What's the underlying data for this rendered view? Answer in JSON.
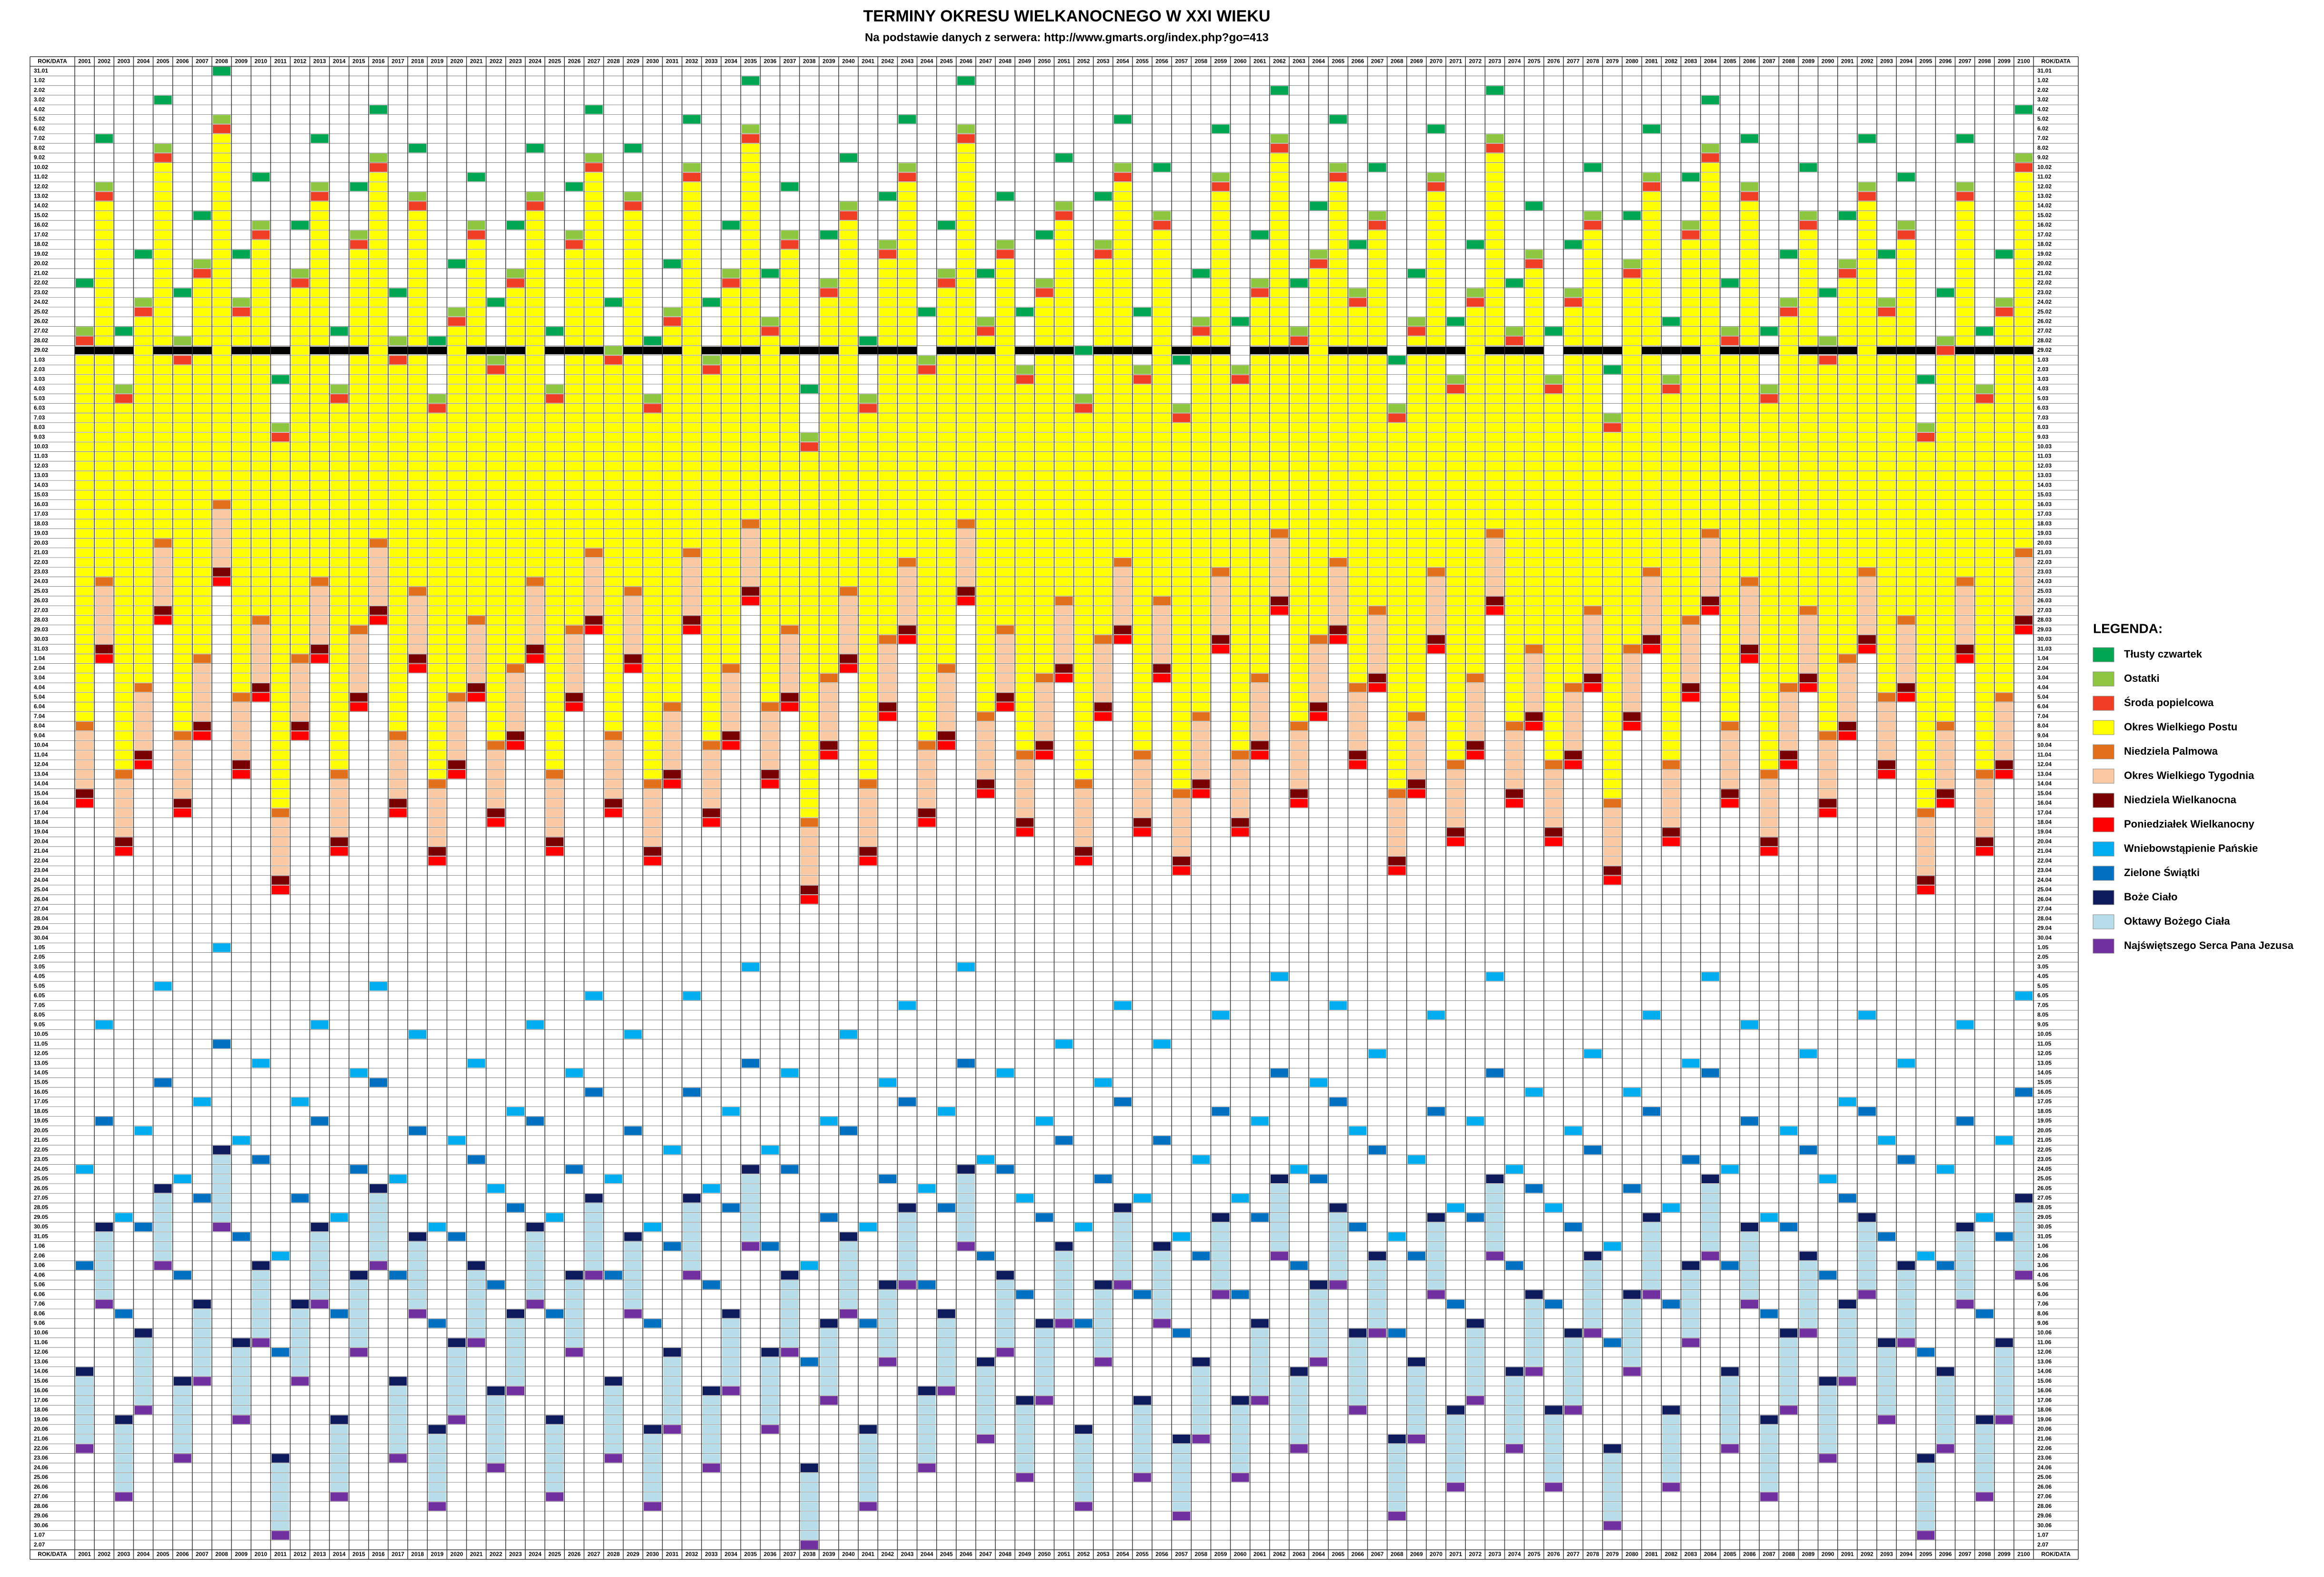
{
  "chart_data": {
    "type": "calendar",
    "title": "TERMINY OKRESU WIELKANOCNEGO W XXI WIEKU",
    "subtitle": "Na podstawie danych z serwera: http://www.gmarts.org/index.php?go=413",
    "corner_label": "ROK/DATA",
    "years": [
      2001,
      2002,
      2003,
      2004,
      2005,
      2006,
      2007,
      2008,
      2009,
      2010,
      2011,
      2012,
      2013,
      2014,
      2015,
      2016,
      2017,
      2018,
      2019,
      2020,
      2021,
      2022,
      2023,
      2024,
      2025,
      2026,
      2027,
      2028,
      2029,
      2030,
      2031,
      2032,
      2033,
      2034,
      2035,
      2036,
      2037,
      2038,
      2039,
      2040,
      2041,
      2042,
      2043,
      2044,
      2045,
      2046,
      2047,
      2048,
      2049,
      2050,
      2051,
      2052,
      2053,
      2054,
      2055,
      2056,
      2057,
      2058,
      2059,
      2060,
      2061,
      2062,
      2063,
      2064,
      2065,
      2066,
      2067,
      2068,
      2069,
      2070,
      2071,
      2072,
      2073,
      2074,
      2075,
      2076,
      2077,
      2078,
      2079,
      2080,
      2081,
      2082,
      2083,
      2084,
      2085,
      2086,
      2087,
      2088,
      2089,
      2090,
      2091,
      2092,
      2093,
      2094,
      2095,
      2096,
      2097,
      2098,
      2099,
      2100
    ],
    "easter": [
      "15.04",
      "31.03",
      "20.04",
      "11.04",
      "27.03",
      "16.04",
      "8.04",
      "23.03",
      "12.04",
      "4.04",
      "24.04",
      "8.04",
      "31.03",
      "20.04",
      "5.04",
      "27.03",
      "16.04",
      "1.04",
      "21.04",
      "12.04",
      "4.04",
      "17.04",
      "9.04",
      "31.03",
      "20.04",
      "5.04",
      "28.03",
      "16.04",
      "1.04",
      "21.04",
      "13.04",
      "28.03",
      "17.04",
      "9.04",
      "25.03",
      "13.04",
      "5.04",
      "25.04",
      "10.04",
      "1.04",
      "21.04",
      "6.04",
      "29.03",
      "17.04",
      "9.04",
      "25.03",
      "14.04",
      "5.04",
      "18.04",
      "10.04",
      "2.04",
      "21.04",
      "6.04",
      "29.03",
      "18.04",
      "2.04",
      "22.04",
      "14.04",
      "30.03",
      "18.04",
      "10.04",
      "26.03",
      "15.04",
      "6.04",
      "29.03",
      "11.04",
      "3.04",
      "22.04",
      "14.04",
      "30.03",
      "19.04",
      "10.04",
      "26.03",
      "15.04",
      "7.04",
      "19.04",
      "11.04",
      "3.04",
      "23.04",
      "7.04",
      "30.03",
      "19.04",
      "4.04",
      "26.03",
      "15.04",
      "31.03",
      "20.04",
      "11.04",
      "3.04",
      "16.04",
      "8.04",
      "30.03",
      "12.04",
      "4.04",
      "24.04",
      "15.04",
      "31.03",
      "20.04",
      "12.04",
      "28.03"
    ],
    "rows": [
      "31.01",
      "1.02",
      "2.02",
      "3.02",
      "4.02",
      "5.02",
      "6.02",
      "7.02",
      "8.02",
      "9.02",
      "10.02",
      "11.02",
      "12.02",
      "13.02",
      "14.02",
      "15.02",
      "16.02",
      "17.02",
      "18.02",
      "19.02",
      "20.02",
      "21.02",
      "22.02",
      "23.02",
      "24.02",
      "25.02",
      "26.02",
      "27.02",
      "28.02",
      "29.02",
      "1.03",
      "2.03",
      "3.03",
      "4.03",
      "5.03",
      "6.03",
      "7.03",
      "8.03",
      "9.03",
      "10.03",
      "11.03",
      "12.03",
      "13.03",
      "14.03",
      "15.03",
      "16.03",
      "17.03",
      "18.03",
      "19.03",
      "20.03",
      "21.03",
      "22.03",
      "23.03",
      "24.03",
      "25.03",
      "26.03",
      "27.03",
      "28.03",
      "29.03",
      "30.03",
      "31.03",
      "1.04",
      "2.04",
      "3.04",
      "4.04",
      "5.04",
      "6.04",
      "7.04",
      "8.04",
      "9.04",
      "10.04",
      "11.04",
      "12.04",
      "13.04",
      "14.04",
      "15.04",
      "16.04",
      "17.04",
      "18.04",
      "19.04",
      "20.04",
      "21.04",
      "22.04",
      "23.04",
      "24.04",
      "25.04",
      "26.04",
      "27.04",
      "28.04",
      "29.04",
      "30.04",
      "1.05",
      "2.05",
      "3.05",
      "4.05",
      "5.05",
      "6.05",
      "7.05",
      "8.05",
      "9.05",
      "10.05",
      "11.05",
      "12.05",
      "13.05",
      "14.05",
      "15.05",
      "16.05",
      "17.05",
      "18.05",
      "19.05",
      "20.05",
      "21.05",
      "22.05",
      "23.05",
      "24.05",
      "25.05",
      "26.05",
      "27.05",
      "28.05",
      "29.05",
      "30.05",
      "31.05",
      "1.06",
      "2.06",
      "3.06",
      "4.06",
      "5.06",
      "6.06",
      "7.06",
      "8.06",
      "9.06",
      "10.06",
      "11.06",
      "12.06",
      "13.06",
      "14.06",
      "15.06",
      "16.06",
      "17.06",
      "18.06",
      "19.06",
      "20.06",
      "21.06",
      "22.06",
      "23.06",
      "24.06",
      "25.06",
      "26.06",
      "27.06",
      "28.06",
      "29.06",
      "30.06",
      "1.07",
      "2.07"
    ],
    "legend_title": "LEGENDA:",
    "legend": [
      {
        "name": "Tłusty czwartek",
        "color": "#00a651"
      },
      {
        "name": "Ostatki",
        "color": "#8dc63f"
      },
      {
        "name": "Środa popielcowa",
        "color": "#ef3e23"
      },
      {
        "name": "Okres Wielkiego Postu",
        "color": "#ffff00"
      },
      {
        "name": "Niedziela Palmowa",
        "color": "#e2701a"
      },
      {
        "name": "Okres Wielkiego Tygodnia",
        "color": "#f9c9a3"
      },
      {
        "name": "Niedziela Wielkanocna",
        "color": "#780000"
      },
      {
        "name": "Poniedziałek Wielkanocny",
        "color": "#ff0000"
      },
      {
        "name": "Wniebowstąpienie Pańskie",
        "color": "#00aeef"
      },
      {
        "name": "Zielone Świątki",
        "color": "#0070c0"
      },
      {
        "name": "Boże Ciało",
        "color": "#0d1a5c"
      },
      {
        "name": "Oktawy Bożego Ciała",
        "color": "#b7dde8"
      },
      {
        "name": "Najświętszego Serca Pana Jezusa",
        "color": "#7030a0"
      }
    ]
  }
}
